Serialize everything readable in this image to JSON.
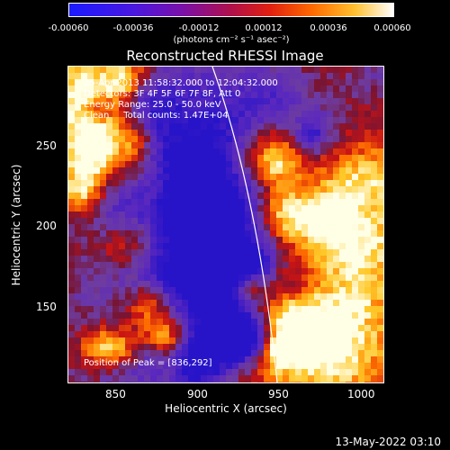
{
  "colorbar": {
    "tick_labels": [
      "-0.00060",
      "-0.00036",
      "-0.00012",
      "0.00012",
      "0.00036",
      "0.00060"
    ],
    "unit_label": "(photons cm⁻² s⁻¹ asec⁻²)",
    "range": [
      -0.0006,
      0.0006
    ],
    "colormap": [
      "#1a1aff",
      "#6600cc",
      "#cc0033",
      "#ff6600",
      "#ffcc33",
      "#ffffff"
    ]
  },
  "title": "Reconstructed RHESSI Image",
  "info": {
    "time_range": "25-Apr-2013 11:58:32.000 to 12:04:32.000",
    "detectors": "Detectors: 3F 4F 5F 6F 7F 8F, Att 0",
    "energy_range": "Energy Range: 25.0 - 50.0 keV",
    "clean": "Clean     Total counts: 1.47E+04",
    "peak": "Position of Peak = [836,292]"
  },
  "chart_data": {
    "type": "heatmap",
    "title": "Reconstructed RHESSI Image",
    "xlabel": "Heliocentric X (arcsec)",
    "ylabel": "Heliocentric Y (arcsec)",
    "xlim": [
      818,
      1012
    ],
    "ylim": [
      102,
      296
    ],
    "x_ticks": [
      850,
      900,
      950,
      1000
    ],
    "y_ticks": [
      150,
      200,
      250
    ],
    "x_tick_labels": [
      "850",
      "900",
      "950",
      "1000"
    ],
    "y_tick_labels": [
      "150",
      "200",
      "250"
    ],
    "peak_position": [
      836,
      292
    ]
  },
  "timestamp": "13-May-2022 03:10"
}
